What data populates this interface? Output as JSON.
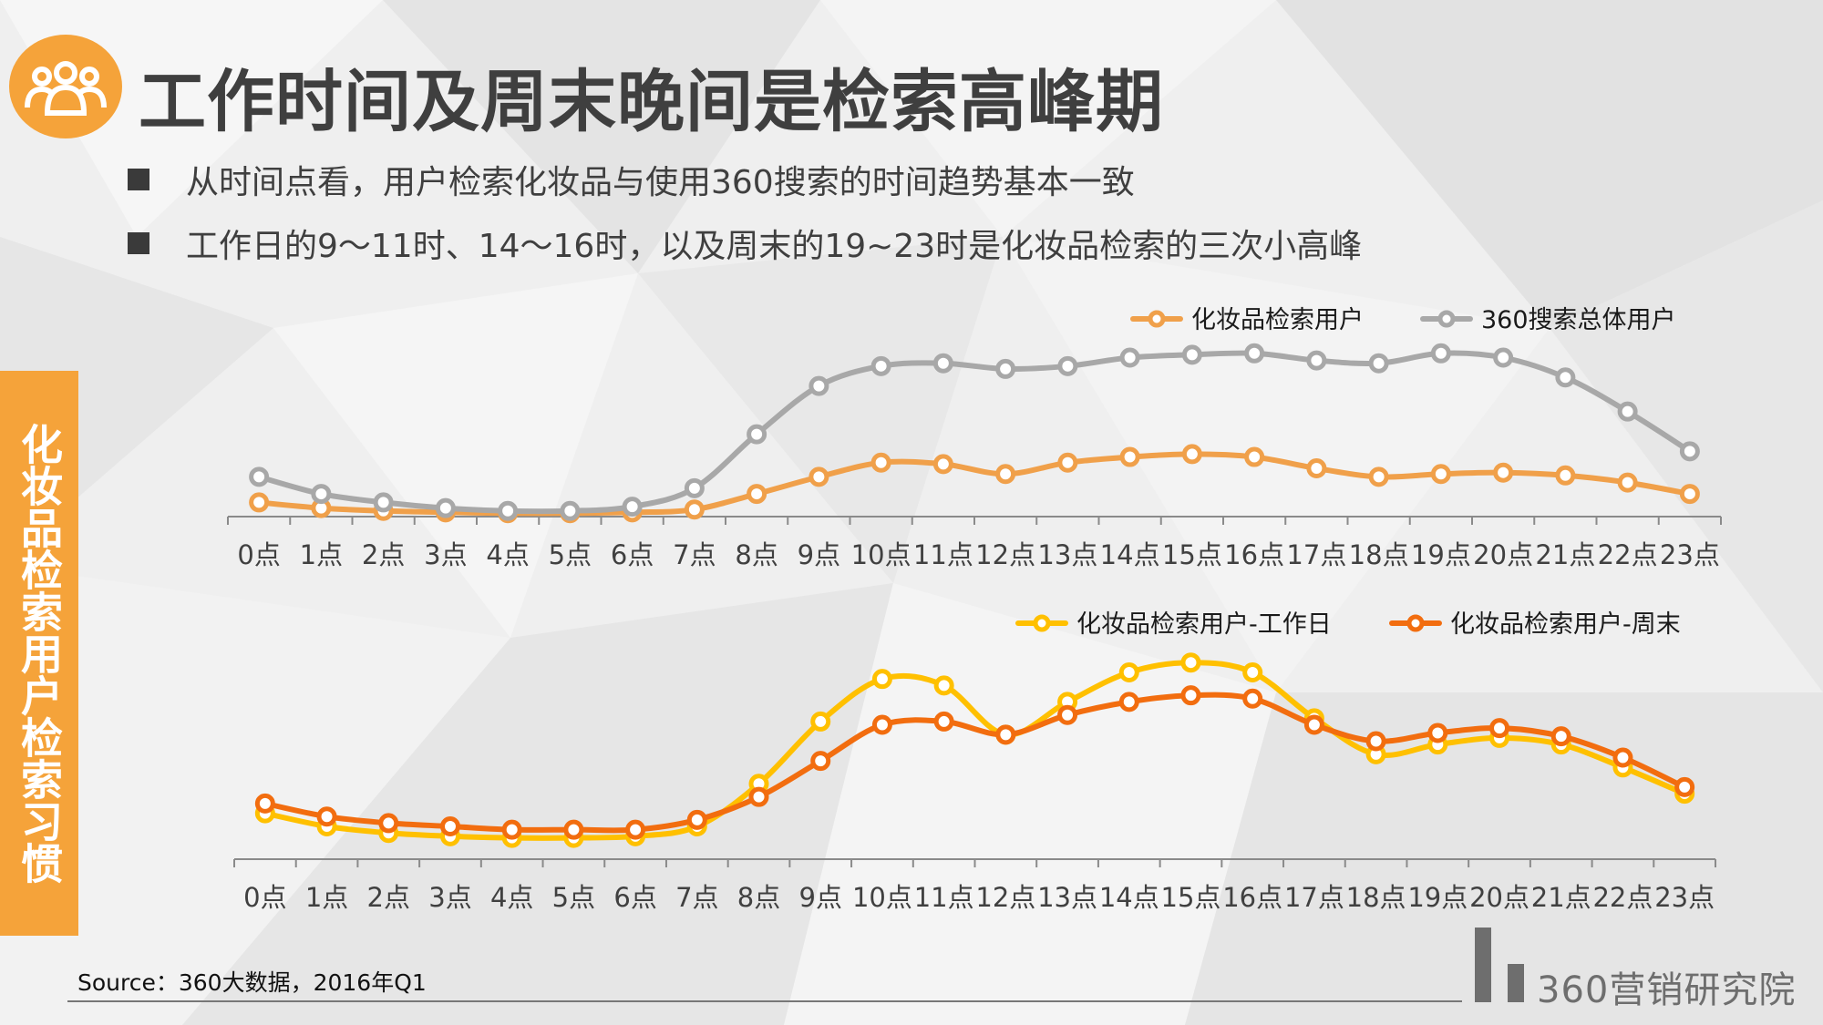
{
  "header": {
    "title": "工作时间及周末晚间是检索高峰期",
    "icon": "people-group-icon"
  },
  "bullets": [
    "从时间点看，用户检索化妆品与使用360搜索的时间趋势基本一致",
    "工作日的9～11时、14～16时，以及周末的19~23时是化妆品检索的三次小高峰"
  ],
  "side_tab": "化妆品检索用户检索习惯",
  "source": "Source：360大数据，2016年Q1",
  "brand": "360营销研究院",
  "colors": {
    "accent": "#f5a33a",
    "gray_series": "#a8a8a8",
    "orange_series": "#f0a04a",
    "yellow_series": "#ffc000",
    "dark_orange_series": "#f26d0f"
  },
  "chart_data": [
    {
      "type": "line",
      "categories": [
        "0点",
        "1点",
        "2点",
        "3点",
        "4点",
        "5点",
        "6点",
        "7点",
        "8点",
        "9点",
        "10点",
        "11点",
        "12点",
        "13点",
        "14点",
        "15点",
        "16点",
        "17点",
        "18点",
        "19点",
        "20点",
        "21点",
        "22点",
        "23点"
      ],
      "series": [
        {
          "name": "化妆品检索用户",
          "color": "#f0a04a",
          "values": [
            5,
            3,
            2,
            1.5,
            1.2,
            1.2,
            1.5,
            2.5,
            8,
            14,
            19,
            18.5,
            15,
            19,
            21,
            22,
            21,
            17,
            14,
            15,
            15.5,
            14.5,
            12,
            8
          ]
        },
        {
          "name": "360搜索总体用户",
          "color": "#a8a8a8",
          "values": [
            14,
            8,
            5,
            3,
            2,
            2,
            3.5,
            10,
            29,
            46,
            53,
            54,
            52,
            53,
            56,
            57,
            57.5,
            55,
            54,
            57.5,
            56,
            49,
            37,
            23
          ]
        }
      ],
      "legend": "top-right",
      "grid": false
    },
    {
      "type": "line",
      "categories": [
        "0点",
        "1点",
        "2点",
        "3点",
        "4点",
        "5点",
        "6点",
        "7点",
        "8点",
        "9点",
        "10点",
        "11点",
        "12点",
        "13点",
        "14点",
        "15点",
        "16点",
        "17点",
        "18点",
        "19点",
        "20点",
        "21点",
        "22点",
        "23点"
      ],
      "series": [
        {
          "name": "化妆品检索用户-工作日",
          "color": "#ffc000",
          "values": [
            14,
            10,
            8,
            7,
            6.5,
            6.5,
            7,
            10,
            23,
            42,
            55,
            53,
            38,
            48,
            57,
            60,
            57,
            43,
            32,
            35,
            37,
            35,
            28,
            20
          ]
        },
        {
          "name": "化妆品检索用户-周末",
          "color": "#f26d0f",
          "values": [
            17,
            13,
            11,
            10,
            9,
            9,
            9,
            12,
            19,
            30,
            41,
            42,
            38,
            44,
            48,
            50,
            49,
            41,
            36,
            38.5,
            40,
            37.5,
            31,
            22
          ]
        }
      ],
      "legend": "top-right",
      "grid": false
    }
  ]
}
